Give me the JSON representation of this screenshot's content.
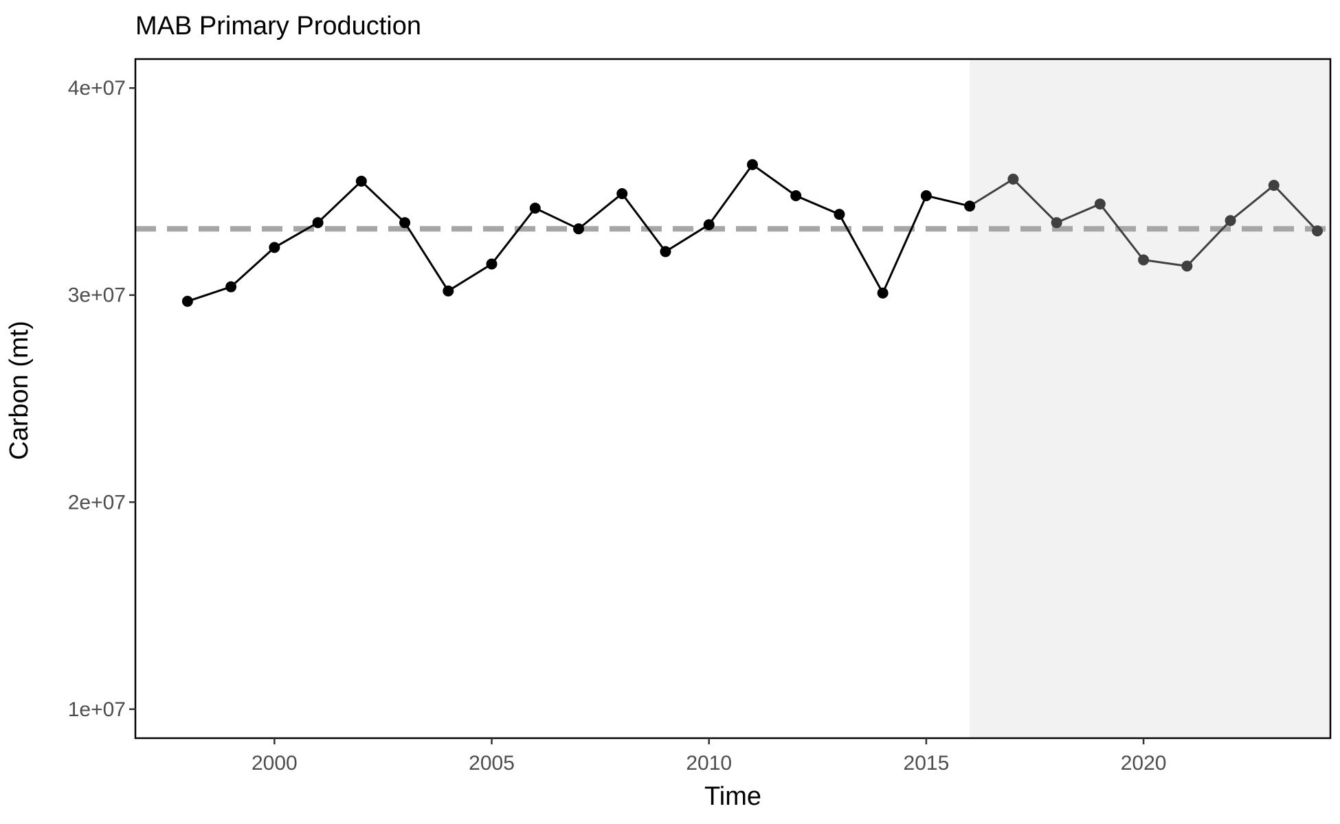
{
  "chart_data": {
    "type": "line",
    "title": "MAB Primary Production",
    "xlabel": "Time",
    "ylabel": "Carbon (mt)",
    "xlim": [
      1996.8,
      2024.3
    ],
    "ylim": [
      8600000,
      41400000
    ],
    "x_ticks": [
      2000,
      2005,
      2010,
      2015,
      2020
    ],
    "x_tick_labels": [
      "2000",
      "2005",
      "2010",
      "2015",
      "2020"
    ],
    "y_ticks": [
      10000000,
      20000000,
      30000000,
      40000000
    ],
    "y_tick_labels": [
      "1e+07",
      "2e+07",
      "3e+07",
      "4e+07"
    ],
    "reference_line": {
      "y": 33200000,
      "style": "dashed",
      "color": "#a6a6a6"
    },
    "shaded_region": {
      "x_start": 2016,
      "x_end": 2024.3,
      "color": "#f2f2f2"
    },
    "series": [
      {
        "x": [
          1998,
          1999,
          2000,
          2001,
          2002,
          2003,
          2004,
          2005,
          2006,
          2007,
          2008,
          2009,
          2010,
          2011,
          2012,
          2013,
          2014,
          2015,
          2016,
          2017,
          2018,
          2019,
          2020,
          2021,
          2022,
          2023,
          2024
        ],
        "values": [
          29700000,
          30400000,
          32300000,
          33500000,
          35500000,
          33500000,
          30200000,
          31500000,
          34200000,
          33200000,
          34900000,
          32100000,
          33400000,
          36300000,
          34800000,
          33900000,
          30100000,
          34800000,
          34300000,
          35600000,
          33500000,
          34400000,
          31700000,
          31400000,
          33600000,
          35300000,
          33100000
        ]
      }
    ],
    "colors": {
      "line": "#000000",
      "recent_line": "#404040",
      "border": "#000000"
    },
    "grid": false,
    "legend": "none"
  }
}
